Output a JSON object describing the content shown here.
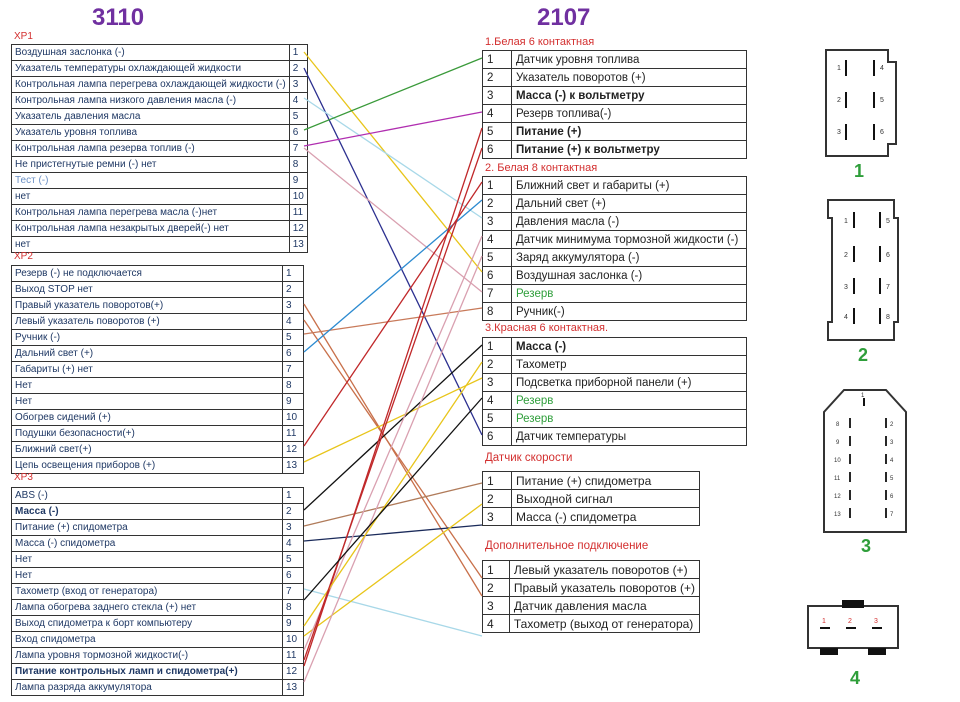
{
  "left_title": "3110",
  "right_title": "2107",
  "xp1": {
    "title": "XP1",
    "rows": [
      {
        "n": "1",
        "t": "Воздушная заслонка (-)"
      },
      {
        "n": "2",
        "t": "Указатель температуры охлаждающей жидкости"
      },
      {
        "n": "3",
        "t": "Контрольная лампа перегрева охлаждающей жидкости (-)"
      },
      {
        "n": "4",
        "t": "Контрольная лампа низкого давления масла (-)"
      },
      {
        "n": "5",
        "t": "Указатель давления масла"
      },
      {
        "n": "6",
        "t": "Указатель уровня топлива"
      },
      {
        "n": "7",
        "t": "Контрольная лампа резерва топлив (-)"
      },
      {
        "n": "8",
        "t": "Не пристегнутые ремни (-) нет"
      },
      {
        "n": "9",
        "t": "Тест (-)"
      },
      {
        "n": "10",
        "t": "нет"
      },
      {
        "n": "11",
        "t": "Контрольная лампа перегрева масла (-)нет"
      },
      {
        "n": "12",
        "t": "Контрольная лампа незакрытых дверей(-) нет"
      },
      {
        "n": "13",
        "t": "нет"
      }
    ]
  },
  "xp2": {
    "title": "XP2",
    "rows": [
      {
        "n": "1",
        "t": "Резерв (-) не подключается"
      },
      {
        "n": "2",
        "t": "Выход STOP нет"
      },
      {
        "n": "3",
        "t": "Правый указатель поворотов(+)"
      },
      {
        "n": "4",
        "t": "Левый указатель поворотов (+)"
      },
      {
        "n": "5",
        "t": "Ручник (-)"
      },
      {
        "n": "6",
        "t": "Дальний свет (+)"
      },
      {
        "n": "7",
        "t": "Габариты (+) нет"
      },
      {
        "n": "8",
        "t": "Нет"
      },
      {
        "n": "9",
        "t": "Нет"
      },
      {
        "n": "10",
        "t": "Обогрев сидений (+)"
      },
      {
        "n": "11",
        "t": "Подушки безопасности(+)"
      },
      {
        "n": "12",
        "t": "Ближний свет(+)"
      },
      {
        "n": "13",
        "t": "Цепь освещения приборов (+)"
      }
    ]
  },
  "xp3": {
    "title": "XP3",
    "rows": [
      {
        "n": "1",
        "t": "ABS (-)"
      },
      {
        "n": "2",
        "t": "Масса (-)"
      },
      {
        "n": "3",
        "t": "Питание (+) спидометра"
      },
      {
        "n": "4",
        "t": "Масса (-) спидометра"
      },
      {
        "n": "5",
        "t": "Нет"
      },
      {
        "n": "6",
        "t": "Нет"
      },
      {
        "n": "7",
        "t": "Тахометр (вход от генератора)"
      },
      {
        "n": "8",
        "t": "Лампа обогрева заднего стекла (+) нет"
      },
      {
        "n": "9",
        "t": "Выход спидометра к борт компьютеру"
      },
      {
        "n": "10",
        "t": "Вход спидометра"
      },
      {
        "n": "11",
        "t": "Лампа уровня тормозной жидкости(-)"
      },
      {
        "n": "12",
        "t": "Питание контрольных ламп и спидометра(+)"
      },
      {
        "n": "13",
        "t": "Лампа разряда аккумулятора"
      }
    ]
  },
  "r1": {
    "title": "1.Белая 6 контактная",
    "rows": [
      {
        "n": "1",
        "t": "Датчик уровня топлива"
      },
      {
        "n": "2",
        "t": "Указатель поворотов (+)"
      },
      {
        "n": "3",
        "t": "Масса (-) к вольтметру"
      },
      {
        "n": "4",
        "t": "Резерв топлива(-)"
      },
      {
        "n": "5",
        "t": "Питание (+)"
      },
      {
        "n": "6",
        "t": "Питание (+) к вольтметру"
      }
    ]
  },
  "r2": {
    "title": "2. Белая 8 контактная",
    "rows": [
      {
        "n": "1",
        "t": "Ближний свет и габариты (+)"
      },
      {
        "n": "2",
        "t": "Дальний свет (+)"
      },
      {
        "n": "3",
        "t": "Давления масла (-)"
      },
      {
        "n": "4",
        "t": "Датчик минимума тормозной жидкости (-)"
      },
      {
        "n": "5",
        "t": "Заряд аккумулятора (-)"
      },
      {
        "n": "6",
        "t": "Воздушная заслонка (-)"
      },
      {
        "n": "7",
        "t": "Резерв"
      },
      {
        "n": "8",
        "t": "Ручник(-)"
      }
    ]
  },
  "r3": {
    "title": "3.Красная 6 контактная.",
    "rows": [
      {
        "n": "1",
        "t": "Масса (-)"
      },
      {
        "n": "2",
        "t": "Тахометр"
      },
      {
        "n": "3",
        "t": "Подсветка приборной панели (+)"
      },
      {
        "n": "4",
        "t": "Резерв"
      },
      {
        "n": "5",
        "t": "Резерв"
      },
      {
        "n": "6",
        "t": "Датчик температуры"
      }
    ]
  },
  "r4": {
    "title": "Датчик скорости",
    "rows": [
      {
        "n": "1",
        "t": "Питание (+) спидометра"
      },
      {
        "n": "2",
        "t": "Выходной сигнал"
      },
      {
        "n": "3",
        "t": "Масса (-) спидометра"
      }
    ]
  },
  "r5": {
    "title": "Дополнительное подключение",
    "rows": [
      {
        "n": "1",
        "t": "Левый указатель поворотов (+)"
      },
      {
        "n": "2",
        "t": "Правый указатель поворотов (+)"
      },
      {
        "n": "3",
        "t": "Датчик давления масла"
      },
      {
        "n": "4",
        "t": "Тахометр (выход от генератора)"
      }
    ]
  },
  "connectors": {
    "c1": {
      "label": "1",
      "pins": [
        "1",
        "2",
        "3",
        "4",
        "5",
        "6"
      ]
    },
    "c2": {
      "label": "2",
      "pins": [
        "1",
        "2",
        "3",
        "4",
        "5",
        "6",
        "7",
        "8"
      ]
    },
    "c3": {
      "label": "3",
      "pins": [
        "1",
        "8",
        "9",
        "10",
        "11",
        "12",
        "13",
        "2",
        "3",
        "4",
        "5",
        "6",
        "7"
      ]
    },
    "c4": {
      "label": "4",
      "pins": [
        "1",
        "2",
        "3"
      ]
    }
  },
  "colors": {
    "title": "#7030a0",
    "section": "#d32f2f",
    "connector_label": "#2e9e3a"
  }
}
